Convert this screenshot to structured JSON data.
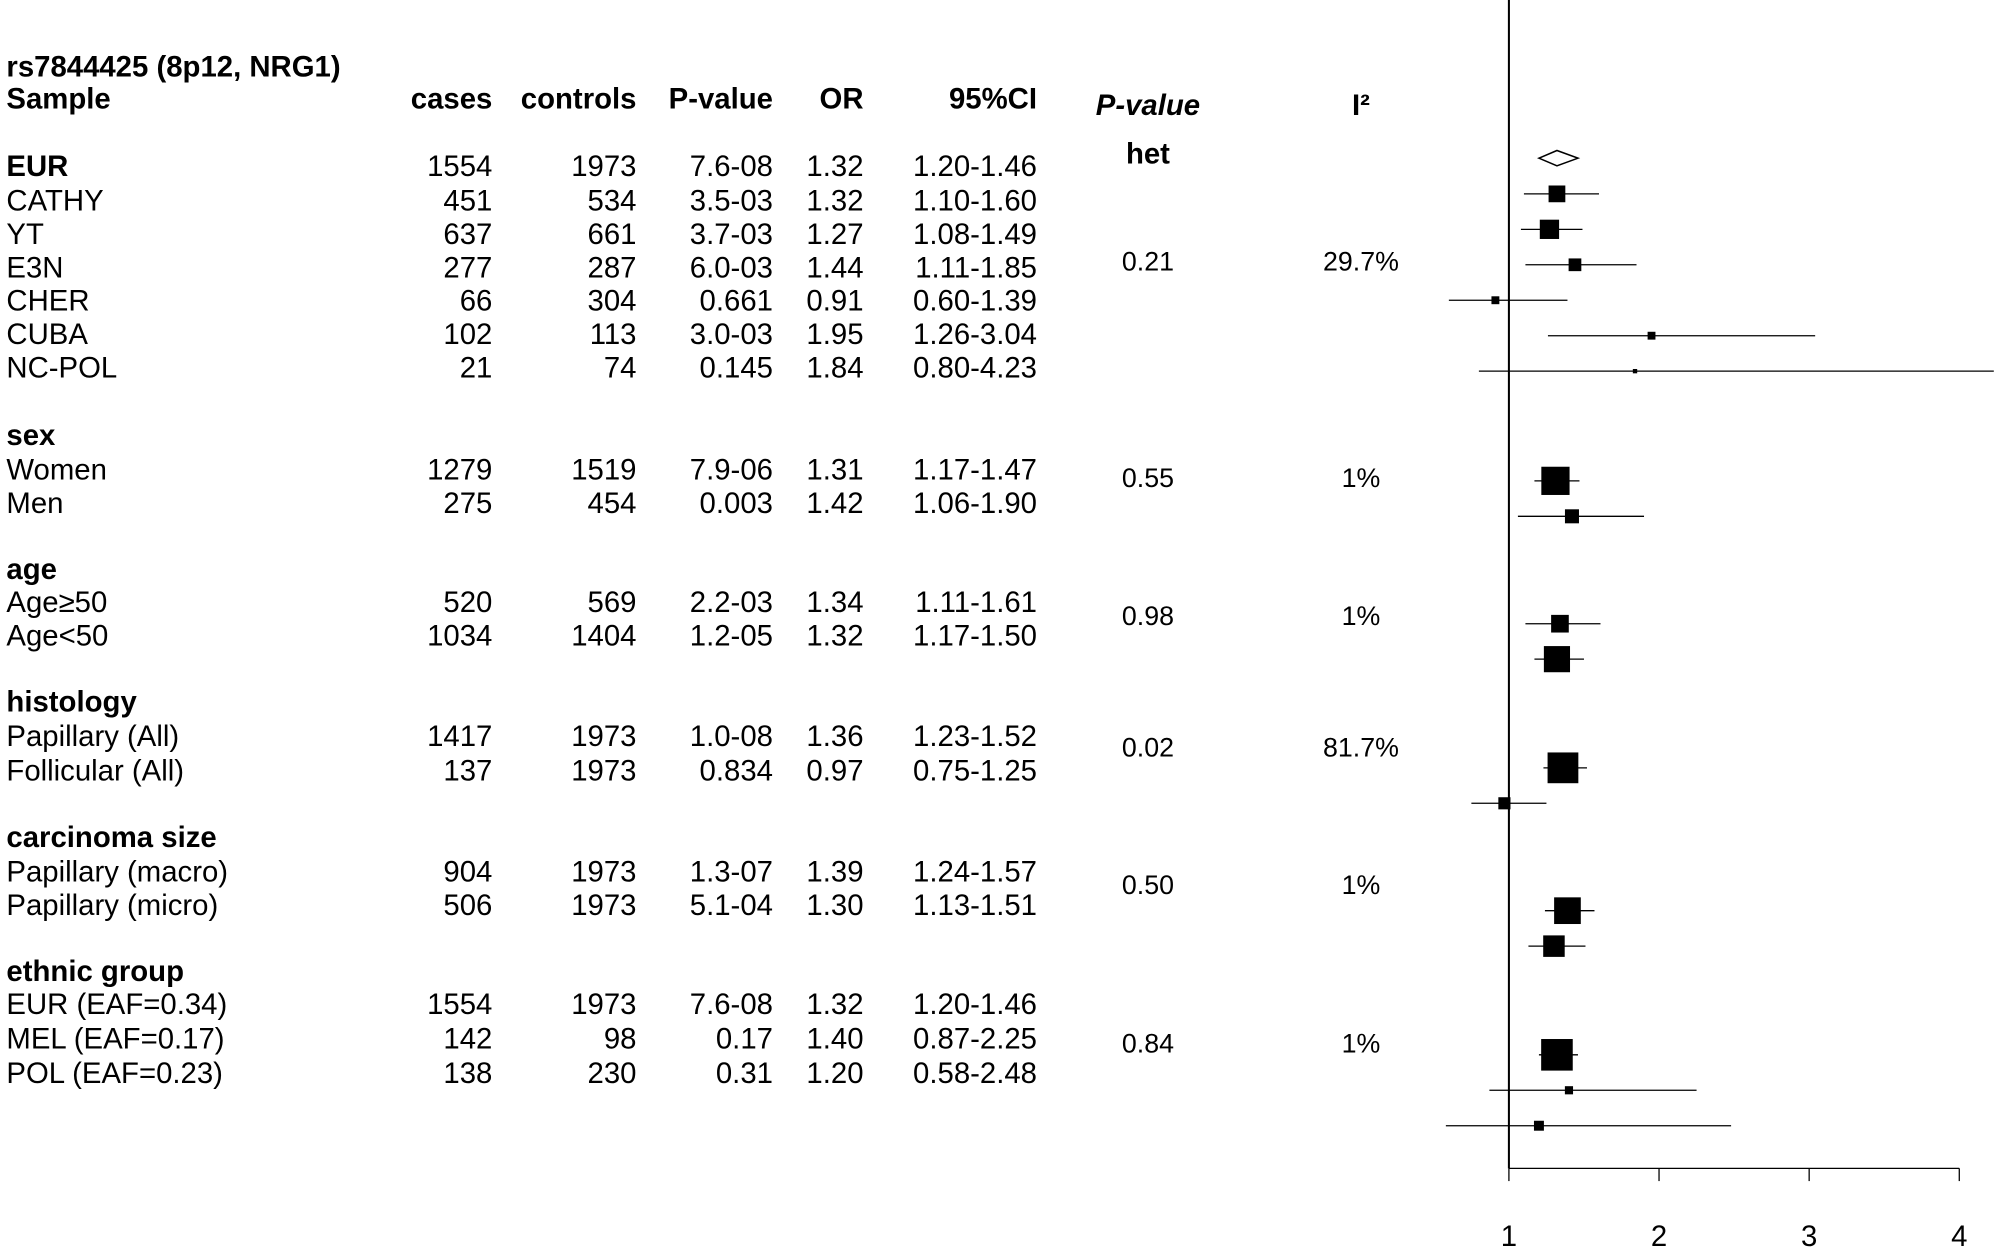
{
  "chart_data": {
    "type": "forest",
    "title": "rs7844425 (8p12, NRG1)",
    "columns": {
      "sample": "Sample",
      "cases": "cases",
      "controls": "controls",
      "pvalue": "P-value",
      "or": "OR",
      "ci": "95%CI",
      "het_line1": "P-value",
      "het_line2": "het",
      "i2": "I²"
    },
    "x_ticks": [
      "1",
      "2",
      "3",
      "4"
    ],
    "xlim": [
      1,
      4
    ],
    "reference_line": 1,
    "groups": [
      {
        "title": "EUR",
        "summary": {
          "cases": "1554",
          "controls": "1973",
          "p": "7.6-08",
          "or": 1.32,
          "ci": "1.20-1.46",
          "lo": 1.2,
          "hi": 1.46
        },
        "het_p": "0.21",
        "i2": "29.7%",
        "rows": [
          {
            "name": "CATHY",
            "cases": "451",
            "controls": "534",
            "p": "3.5-03",
            "or": 1.32,
            "ci": "1.10-1.60",
            "lo": 1.1,
            "hi": 1.6
          },
          {
            "name": "YT",
            "cases": "637",
            "controls": "661",
            "p": "3.7-03",
            "or": 1.27,
            "ci": "1.08-1.49",
            "lo": 1.08,
            "hi": 1.49
          },
          {
            "name": "E3N",
            "cases": "277",
            "controls": "287",
            "p": "6.0-03",
            "or": 1.44,
            "ci": "1.11-1.85",
            "lo": 1.11,
            "hi": 1.85
          },
          {
            "name": "CHER",
            "cases": "66",
            "controls": "304",
            "p": "0.661",
            "or": 0.91,
            "ci": "0.60-1.39",
            "lo": 0.6,
            "hi": 1.39
          },
          {
            "name": "CUBA",
            "cases": "102",
            "controls": "113",
            "p": "3.0-03",
            "or": 1.95,
            "ci": "1.26-3.04",
            "lo": 1.26,
            "hi": 3.04
          },
          {
            "name": "NC-POL",
            "cases": "21",
            "controls": "74",
            "p": "0.145",
            "or": 1.84,
            "ci": "0.80-4.23",
            "lo": 0.8,
            "hi": 4.23
          }
        ]
      },
      {
        "title": "sex",
        "het_p": "0.55",
        "i2": "1%",
        "rows": [
          {
            "name": "Women",
            "cases": "1279",
            "controls": "1519",
            "p": "7.9-06",
            "or": 1.31,
            "ci": "1.17-1.47",
            "lo": 1.17,
            "hi": 1.47
          },
          {
            "name": "Men",
            "cases": "275",
            "controls": "454",
            "p": "0.003",
            "or": 1.42,
            "ci": "1.06-1.90",
            "lo": 1.06,
            "hi": 1.9
          }
        ]
      },
      {
        "title": "age",
        "het_p": "0.98",
        "i2": "1%",
        "rows": [
          {
            "name": "Age≥50",
            "cases": "520",
            "controls": "569",
            "p": "2.2-03",
            "or": 1.34,
            "ci": "1.11-1.61",
            "lo": 1.11,
            "hi": 1.61
          },
          {
            "name": "Age<50",
            "cases": "1034",
            "controls": "1404",
            "p": "1.2-05",
            "or": 1.32,
            "ci": "1.17-1.50",
            "lo": 1.17,
            "hi": 1.5
          }
        ]
      },
      {
        "title": "histology",
        "het_p": "0.02",
        "i2": "81.7%",
        "rows": [
          {
            "name": "Papillary (All)",
            "cases": "1417",
            "controls": "1973",
            "p": "1.0-08",
            "or": 1.36,
            "ci": "1.23-1.52",
            "lo": 1.23,
            "hi": 1.52
          },
          {
            "name": "Follicular (All)",
            "cases": "137",
            "controls": "1973",
            "p": "0.834",
            "or": 0.97,
            "ci": "0.75-1.25",
            "lo": 0.75,
            "hi": 1.25
          }
        ]
      },
      {
        "title": "carcinoma size",
        "het_p": "0.50",
        "i2": "1%",
        "rows": [
          {
            "name": "Papillary (macro)",
            "cases": "904",
            "controls": "1973",
            "p": "1.3-07",
            "or": 1.39,
            "ci": "1.24-1.57",
            "lo": 1.24,
            "hi": 1.57
          },
          {
            "name": "Papillary (micro)",
            "cases": "506",
            "controls": "1973",
            "p": "5.1-04",
            "or": 1.3,
            "ci": "1.13-1.51",
            "lo": 1.13,
            "hi": 1.51
          }
        ]
      },
      {
        "title": "ethnic group",
        "het_p": "0.84",
        "i2": "1%",
        "rows": [
          {
            "name": "EUR (EAF=0.34)",
            "cases": "1554",
            "controls": "1973",
            "p": "7.6-08",
            "or": 1.32,
            "ci": "1.20-1.46",
            "lo": 1.2,
            "hi": 1.46
          },
          {
            "name": "MEL (EAF=0.17)",
            "cases": "142",
            "controls": "98",
            "p": "0.17",
            "or": 1.4,
            "ci": "0.87-2.25",
            "lo": 0.87,
            "hi": 2.25
          },
          {
            "name": "POL (EAF=0.23)",
            "cases": "138",
            "controls": "230",
            "p": "0.31",
            "or": 1.2,
            "ci": "0.58-2.48",
            "lo": 0.58,
            "hi": 2.48
          }
        ]
      }
    ]
  }
}
